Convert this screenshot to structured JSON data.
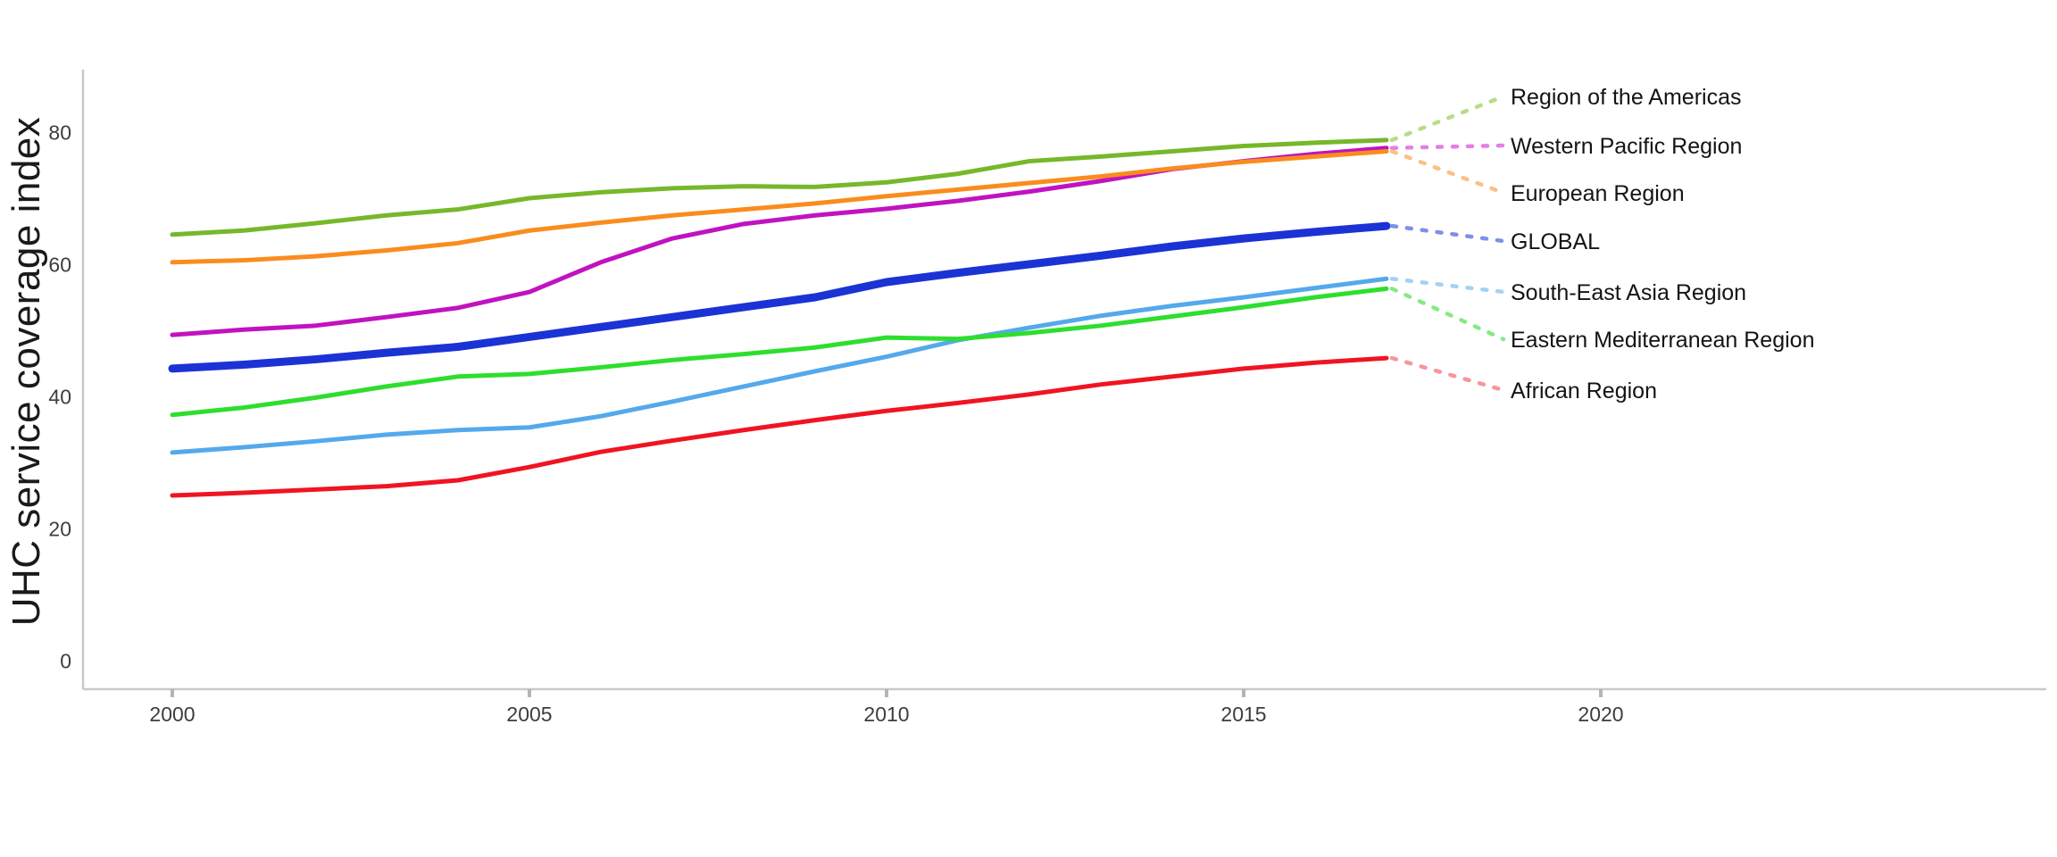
{
  "chart_data": {
    "type": "line",
    "title": "",
    "ylabel": "UHC service coverage index",
    "xlabel": "",
    "grid": false,
    "legend_position": "right-of-line-ends",
    "x": [
      2000,
      2001,
      2002,
      2003,
      2004,
      2005,
      2006,
      2007,
      2008,
      2009,
      2010,
      2011,
      2012,
      2013,
      2014,
      2015,
      2016,
      2017
    ],
    "x_ticks": [
      2000,
      2005,
      2010,
      2015,
      2020
    ],
    "y_ticks": [
      0,
      20,
      40,
      60,
      80
    ],
    "ylim": [
      0,
      88
    ],
    "xlim": [
      1998.7,
      2026.3
    ],
    "axis_color": "#c9c9c9",
    "tick_mark_color": "#b5b5b5",
    "series": [
      {
        "name": "Region of the Americas",
        "color": "#76B82A",
        "leader_color": "#B8DC88",
        "line_width": 5,
        "values": [
          64.5,
          65.1,
          66.2,
          67.4,
          68.3,
          70.0,
          70.9,
          71.5,
          71.8,
          71.7,
          72.4,
          73.7,
          75.6,
          76.3,
          77.1,
          77.9,
          78.4,
          78.8
        ]
      },
      {
        "name": "Western Pacific Region",
        "color": "#C013C0",
        "leader_color": "#E57EE5",
        "line_width": 5,
        "values": [
          49.3,
          50.1,
          50.7,
          52.0,
          53.4,
          55.8,
          60.3,
          63.9,
          66.1,
          67.4,
          68.4,
          69.6,
          71.0,
          72.6,
          74.4,
          75.6,
          76.7,
          77.6
        ]
      },
      {
        "name": "European Region",
        "color": "#FA8C1E",
        "leader_color": "#FBC087",
        "line_width": 5,
        "values": [
          60.3,
          60.6,
          61.2,
          62.1,
          63.2,
          65.1,
          66.3,
          67.4,
          68.3,
          69.2,
          70.3,
          71.3,
          72.3,
          73.3,
          74.5,
          75.5,
          76.3,
          77.1
        ]
      },
      {
        "name": "GLOBAL",
        "color": "#1B33D4",
        "leader_color": "#7E90E8",
        "line_width": 9,
        "values": [
          44.2,
          44.8,
          45.6,
          46.6,
          47.5,
          49.0,
          50.5,
          52.0,
          53.5,
          55.0,
          57.3,
          58.7,
          60.0,
          61.3,
          62.7,
          63.9,
          64.9,
          65.8
        ]
      },
      {
        "name": "South-East Asia Region",
        "color": "#54A9EC",
        "leader_color": "#A2D2F5",
        "line_width": 5,
        "values": [
          31.5,
          32.3,
          33.2,
          34.2,
          34.9,
          35.3,
          37.0,
          39.2,
          41.5,
          43.8,
          46.0,
          48.5,
          50.4,
          52.2,
          53.7,
          55.0,
          56.4,
          57.8
        ]
      },
      {
        "name": "Eastern Mediterranean Region",
        "color": "#2EDE2E",
        "leader_color": "#85EA85",
        "line_width": 5,
        "values": [
          37.2,
          38.3,
          39.8,
          41.5,
          43.0,
          43.4,
          44.4,
          45.5,
          46.4,
          47.4,
          48.9,
          48.7,
          49.6,
          50.7,
          52.1,
          53.5,
          55.0,
          56.3
        ]
      },
      {
        "name": "African Region",
        "color": "#F01423",
        "leader_color": "#F7959B",
        "line_width": 5,
        "values": [
          25.0,
          25.4,
          25.9,
          26.4,
          27.3,
          29.3,
          31.6,
          33.3,
          34.9,
          36.4,
          37.8,
          39.0,
          40.3,
          41.8,
          43.0,
          44.2,
          45.1,
          45.8
        ]
      }
    ]
  }
}
